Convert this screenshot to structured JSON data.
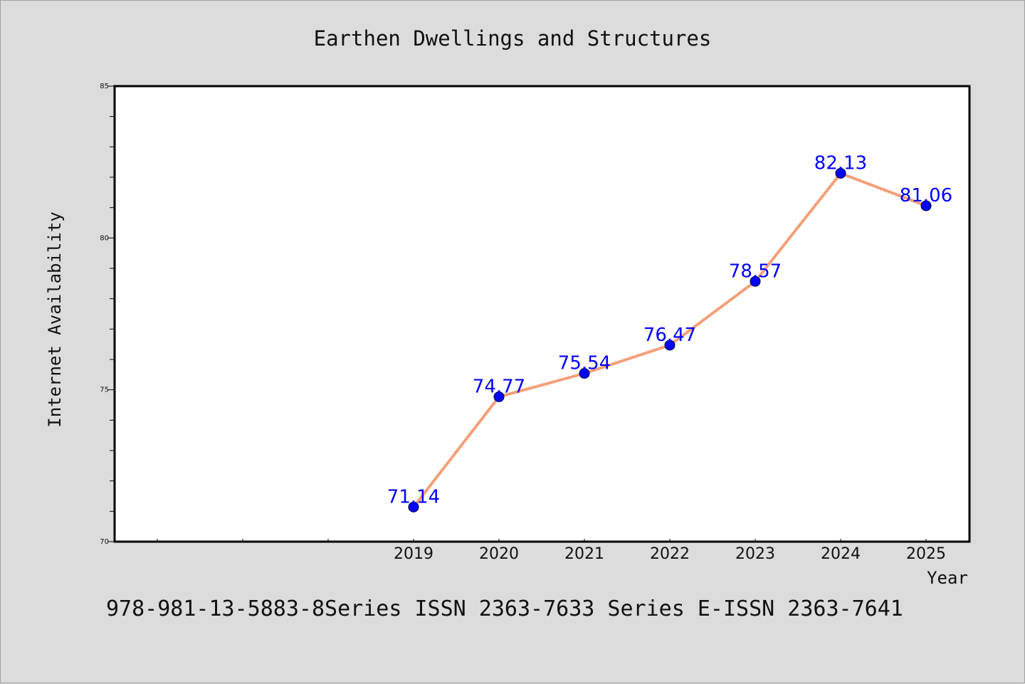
{
  "chart_data": {
    "type": "line",
    "title": "Earthen Dwellings and Structures",
    "xlabel": "Year",
    "ylabel": "Internet Availability",
    "x": [
      "2019",
      "2020",
      "2021",
      "2022",
      "2023",
      "2024",
      "2025"
    ],
    "values": [
      71.14,
      74.77,
      75.54,
      76.47,
      78.57,
      82.13,
      81.06
    ],
    "data_labels": [
      "71.14",
      "74.77",
      "75.54",
      "76.47",
      "78.57",
      "82.13",
      "81.06"
    ],
    "ylim": [
      70,
      85
    ],
    "yticks": [
      "70",
      "75",
      "80",
      "85"
    ],
    "line_color": "#f4a07a",
    "marker_color": "#0000ff",
    "label_color": "#0000ff",
    "grid": false,
    "legend": "none"
  },
  "footer": "978-981-13-5883-8Series ISSN 2363-7633 Series E-ISSN 2363-7641"
}
